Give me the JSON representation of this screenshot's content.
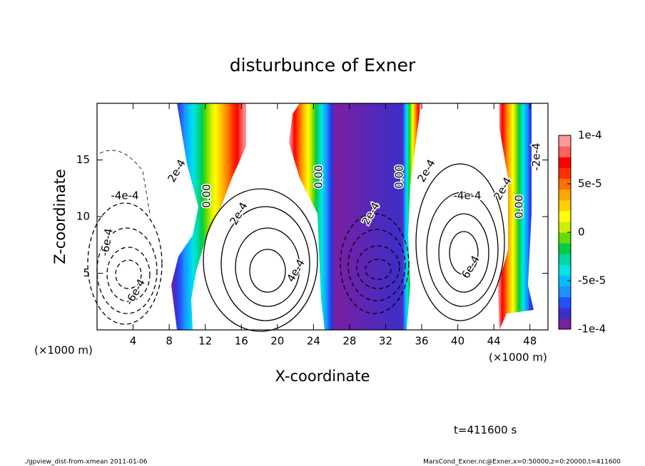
{
  "chart_data": {
    "type": "contour",
    "title": "disturbunce of Exner",
    "x_label": "X-coordinate",
    "y_label": "Z-coordinate",
    "x_unit_label": "(×1000 m)",
    "xlim": [
      0,
      50
    ],
    "ylim": [
      0,
      20
    ],
    "xticks": [
      4,
      8,
      12,
      16,
      20,
      24,
      28,
      32,
      36,
      40,
      44,
      48
    ],
    "yticks": [
      5,
      10,
      15
    ],
    "colorbar": {
      "lim": [
        -0.0001,
        0.0001
      ],
      "ticks": [
        {
          "value": 0.0001,
          "label": "1e-4"
        },
        {
          "value": 5e-05,
          "label": "5e-5"
        },
        0,
        {
          "value": -5e-05,
          "label": "-5e-5"
        },
        {
          "value": -0.0001,
          "label": "-1e-4"
        }
      ],
      "colors": [
        "#7a1fa2",
        "#3a2fc8",
        "#2050ff",
        "#1e90ff",
        "#00bfff",
        "#00e5e5",
        "#00d9a0",
        "#00cc44",
        "#66dd00",
        "#ccee00",
        "#ffff00",
        "#ffd000",
        "#ffa500",
        "#ff7000",
        "#ff3000",
        "#ff0000",
        "#ff6060",
        "#ff9999"
      ]
    },
    "contour_labels": [
      "2e-4",
      "-4e-4",
      "-6e-4",
      "-6e-4",
      "0.00",
      "2e-4",
      "4e-4",
      "0.00",
      "2e-4",
      "0.00",
      "2e-4",
      "-4e-4",
      "2e-4",
      "6e-4",
      "0.00",
      "-2e-4"
    ],
    "time_label": "t=411600 s",
    "footer_left": "./gpview_dist-from-xmean  2011-01-06",
    "footer_right": "MarsCond_Exner.nc@Exner,x=0:50000,z=0:20000,t=411600"
  }
}
